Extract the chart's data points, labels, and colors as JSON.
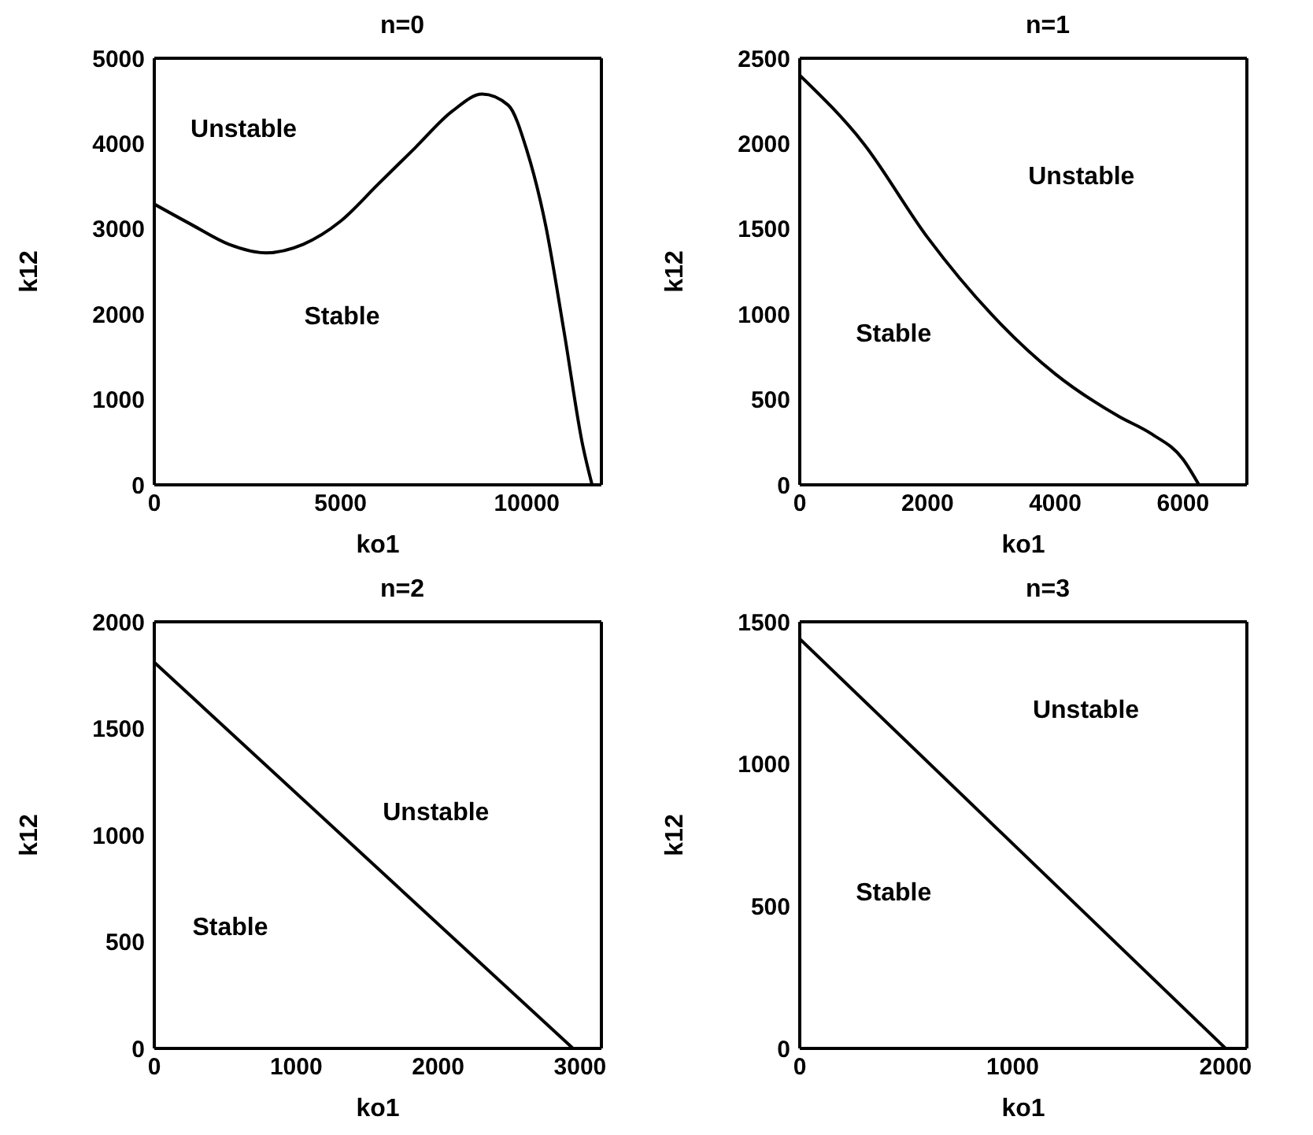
{
  "chart_data": [
    {
      "type": "line",
      "title": "n=0",
      "xlabel": "ko1",
      "ylabel": "k12",
      "color": "#000000",
      "x": [
        0,
        1000,
        2000,
        3000,
        4000,
        5000,
        6000,
        7000,
        8000,
        8800,
        9500,
        10000,
        10500,
        11000,
        11500,
        11750
      ],
      "values": [
        3290,
        3050,
        2820,
        2720,
        2820,
        3090,
        3520,
        3950,
        4380,
        4580,
        4450,
        3920,
        3050,
        1790,
        460,
        0
      ],
      "xlim": [
        0,
        12000
      ],
      "xticks": [
        0,
        5000,
        10000
      ],
      "ylim": [
        0,
        5000
      ],
      "yticks": [
        0,
        1000,
        2000,
        3000,
        4000,
        5000
      ],
      "annotations": [
        "Unstable",
        "Stable"
      ]
    },
    {
      "type": "line",
      "title": "n=1",
      "xlabel": "ko1",
      "ylabel": "k12",
      "color": "#000000",
      "x": [
        0,
        1000,
        2000,
        3000,
        4000,
        5000,
        5500,
        6000,
        6250
      ],
      "values": [
        2400,
        2000,
        1450,
        1000,
        650,
        400,
        300,
        150,
        0
      ],
      "xlim": [
        0,
        7000
      ],
      "xticks": [
        0,
        2000,
        4000,
        6000
      ],
      "ylim": [
        0,
        2500
      ],
      "yticks": [
        0,
        500,
        1000,
        1500,
        2000,
        2500
      ],
      "annotations": [
        "Unstable",
        "Stable"
      ]
    },
    {
      "type": "line",
      "title": "n=2",
      "xlabel": "ko1",
      "ylabel": "k12",
      "color": "#000000",
      "x": [
        0,
        2950
      ],
      "values": [
        1810,
        0
      ],
      "xlim": [
        0,
        3150
      ],
      "xticks": [
        0,
        1000,
        2000,
        3000
      ],
      "ylim": [
        0,
        2000
      ],
      "yticks": [
        0,
        500,
        1000,
        1500,
        2000
      ],
      "annotations": [
        "Unstable",
        "Stable"
      ]
    },
    {
      "type": "line",
      "title": "n=3",
      "xlabel": "ko1",
      "ylabel": "k12",
      "color": "#000000",
      "x": [
        0,
        2000
      ],
      "values": [
        1440,
        0
      ],
      "xlim": [
        0,
        2100
      ],
      "xticks": [
        0,
        1000,
        2000
      ],
      "ylim": [
        0,
        1500
      ],
      "yticks": [
        0,
        500,
        1000,
        1500
      ],
      "annotations": [
        "Unstable",
        "Stable"
      ]
    }
  ]
}
